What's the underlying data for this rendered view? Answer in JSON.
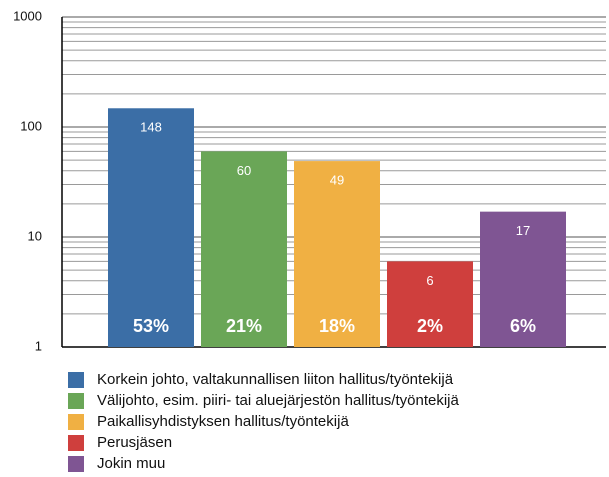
{
  "chart_data": {
    "type": "bar",
    "categories": [
      "Korkein johto, valtakunnallisen liiton hallitus/työntekijä",
      "Välijohto, esim. piiri- tai aluejärjestön hallitus/työntekijä",
      "Paikallisyhdistyksen hallitus/työntekijä",
      "Perusjäsen",
      "Jokin muu"
    ],
    "values": [
      148,
      60,
      49,
      6,
      17
    ],
    "percentages": [
      53,
      21,
      18,
      2,
      6
    ],
    "percentage_labels": [
      "53%",
      "21%",
      "18%",
      "2%",
      "6%"
    ],
    "colors": [
      "#3b6ea6",
      "#6aa657",
      "#f0b043",
      "#cf3f3d",
      "#7f5593"
    ],
    "log_scale": true,
    "ylim": [
      1,
      1000
    ],
    "yticks": [
      1,
      10,
      100,
      1000
    ],
    "minor_yticks": [
      2,
      3,
      4,
      5,
      6,
      7,
      8,
      9,
      20,
      30,
      40,
      50,
      60,
      70,
      80,
      90,
      200,
      300,
      400,
      500,
      600,
      700,
      800,
      900
    ],
    "grid": true,
    "legend": "bottom"
  }
}
